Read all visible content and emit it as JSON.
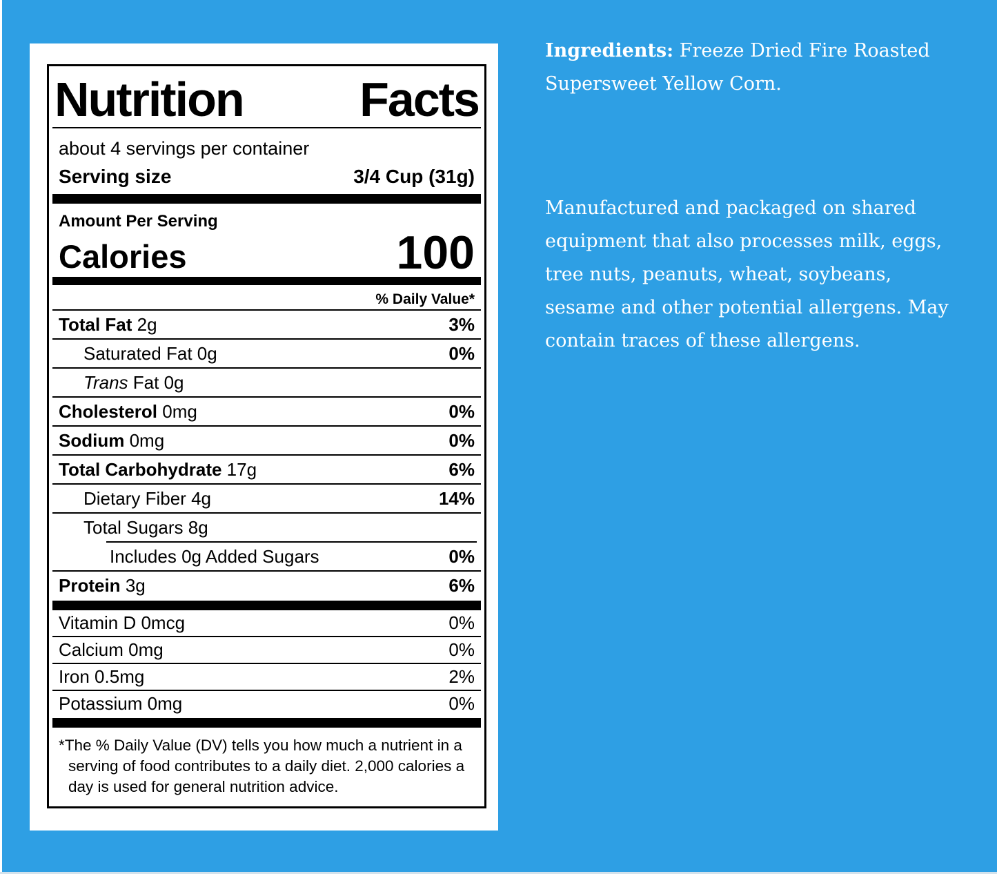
{
  "page": {
    "background_color": "#2E9FE4",
    "card_color": "#FFFFFF",
    "text_color_on_blue": "#FFFFFF"
  },
  "nutrition_label": {
    "title": "Nutrition Facts",
    "servings_per_container": "about 4 servings per container",
    "serving_size_label": "Serving size",
    "serving_size_value": "3/4 Cup (31g)",
    "amount_per_serving": "Amount Per Serving",
    "calories_label": "Calories",
    "calories_value": "100",
    "daily_value_header": "% Daily Value*",
    "nutrients": [
      {
        "name": "Total Fat",
        "amount": "2g",
        "dv": "3%"
      },
      {
        "name": "Saturated Fat",
        "amount": "0g",
        "dv": "0%"
      },
      {
        "name_italic": "Trans",
        "name": "Fat",
        "amount": "0g",
        "dv": ""
      },
      {
        "name": "Cholesterol",
        "amount": "0mg",
        "dv": "0%"
      },
      {
        "name": "Sodium",
        "amount": "0mg",
        "dv": "0%"
      },
      {
        "name": "Total Carbohydrate",
        "amount": "17g",
        "dv": "6%"
      },
      {
        "name": "Dietary Fiber",
        "amount": "4g",
        "dv": "14%"
      },
      {
        "name": "Total Sugars",
        "amount": "8g",
        "dv": ""
      },
      {
        "name": "Includes 0g Added Sugars",
        "amount": "",
        "dv": "0%"
      },
      {
        "name": "Protein",
        "amount": "3g",
        "dv": "6%"
      }
    ],
    "vitamins": [
      {
        "name": "Vitamin D",
        "amount": "0mcg",
        "dv": "0%"
      },
      {
        "name": "Calcium",
        "amount": "0mg",
        "dv": "0%"
      },
      {
        "name": "Iron",
        "amount": "0.5mg",
        "dv": "2%"
      },
      {
        "name": "Potassium",
        "amount": "0mg",
        "dv": "0%"
      }
    ],
    "footnote": "*The % Daily Value (DV) tells you how much a nutrient in a serving of food contributes to a daily diet. 2,000 calories a day is used for general nutrition advice."
  },
  "side_text": {
    "ingredients_label": "Ingredients:",
    "ingredients_text": "Freeze Dried Fire Roasted Supersweet Yellow Corn.",
    "allergen_text": "Manufactured and packaged on shared equipment that also processes milk, eggs, tree nuts, peanuts, wheat, soybeans, sesame and other potential allergens. May contain traces of these allergens."
  }
}
